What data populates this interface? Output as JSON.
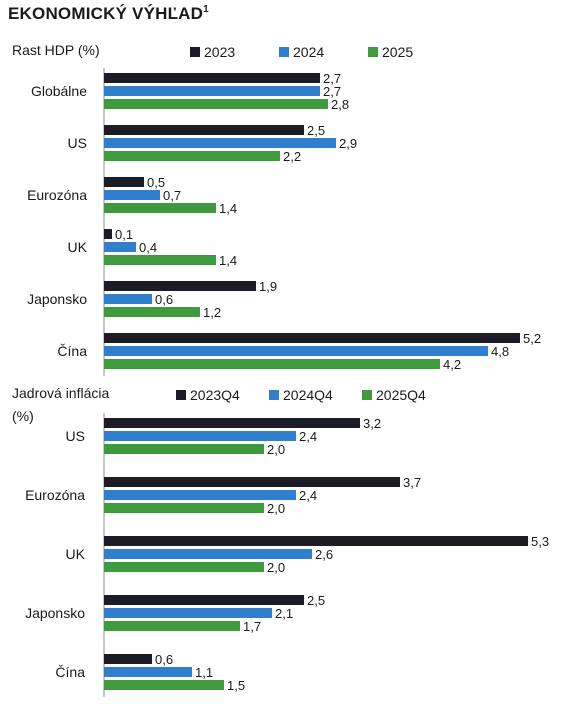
{
  "title": "EKONOMICKÝ VÝHĽAD",
  "title_sup": "1",
  "colors": {
    "dark": "#1b1c26",
    "blue": "#2f7fcc",
    "green": "#3f9a3d"
  },
  "chart_data": [
    {
      "type": "bar",
      "orientation": "horizontal",
      "title": "Rast HDP (%)",
      "categories": [
        "Globálne",
        "US",
        "Eurozóna",
        "UK",
        "Japonsko",
        "Čína"
      ],
      "series": [
        {
          "name": "2023",
          "color": "#1b1c26",
          "values": [
            2.7,
            2.5,
            0.5,
            0.1,
            1.9,
            5.2
          ],
          "labels": [
            "2,7",
            "2,5",
            "0,5",
            "0,1",
            "1,9",
            "5,2"
          ]
        },
        {
          "name": "2024",
          "color": "#2f7fcc",
          "values": [
            2.7,
            2.9,
            0.7,
            0.4,
            0.6,
            4.8
          ],
          "labels": [
            "2,7",
            "2,9",
            "0,7",
            "0,4",
            "0,6",
            "4,8"
          ]
        },
        {
          "name": "2025",
          "color": "#3f9a3d",
          "values": [
            2.8,
            2.2,
            1.4,
            1.4,
            1.2,
            4.2
          ],
          "labels": [
            "2,8",
            "2,2",
            "1,4",
            "1,4",
            "1,2",
            "4,2"
          ]
        }
      ],
      "xlim": [
        0,
        5.3
      ],
      "legend": "top"
    },
    {
      "type": "bar",
      "orientation": "horizontal",
      "title": "Jadrová inflácia",
      "title2": "(%)",
      "categories": [
        "US",
        "Eurozóna",
        "UK",
        "Japonsko",
        "Čína"
      ],
      "series": [
        {
          "name": "2023Q4",
          "color": "#1b1c26",
          "values": [
            3.2,
            3.7,
            5.3,
            2.5,
            0.6
          ],
          "labels": [
            "3,2",
            "3,7",
            "5,3",
            "2,5",
            "0,6"
          ]
        },
        {
          "name": "2024Q4",
          "color": "#2f7fcc",
          "values": [
            2.4,
            2.4,
            2.6,
            2.1,
            1.1
          ],
          "labels": [
            "2,4",
            "2,4",
            "2,6",
            "2,1",
            "1,1"
          ]
        },
        {
          "name": "2025Q4",
          "color": "#3f9a3d",
          "values": [
            2.0,
            2.0,
            2.0,
            1.7,
            1.5
          ],
          "labels": [
            "2,0",
            "2,0",
            "2,0",
            "1,7",
            "1,5"
          ]
        }
      ],
      "xlim": [
        0,
        5.3
      ],
      "legend": "top"
    }
  ]
}
